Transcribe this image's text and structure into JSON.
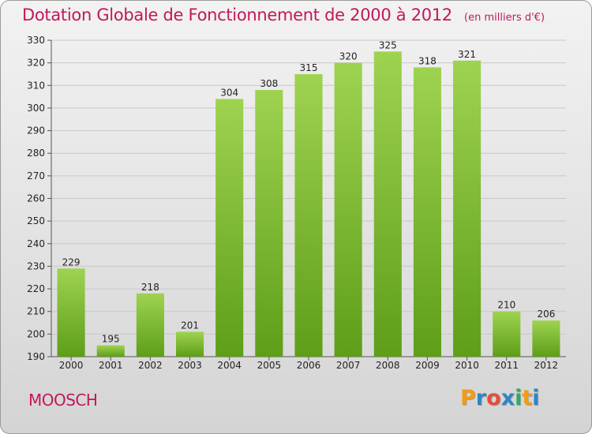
{
  "header": {
    "title": "Dotation Globale de Fonctionnement de 2000 à 2012",
    "unit": "(en milliers d'€)"
  },
  "commune": "MOOSCH",
  "brand": {
    "letters": [
      "P",
      "r",
      "o",
      "x",
      "i",
      "t",
      "i"
    ],
    "colors": [
      "#f39c12",
      "#2e86c1",
      "#e74c3c",
      "#2e86c1",
      "#27ae60",
      "#f39c12",
      "#2e86c1"
    ]
  },
  "colors": {
    "title": "#c2185b",
    "bar_top": "#9ed350",
    "bar_bottom": "#5e9e18"
  },
  "chart_data": {
    "type": "bar",
    "categories": [
      "2000",
      "2001",
      "2002",
      "2003",
      "2004",
      "2005",
      "2006",
      "2007",
      "2008",
      "2009",
      "2010",
      "2011",
      "2012"
    ],
    "values": [
      229,
      195,
      218,
      201,
      304,
      308,
      315,
      320,
      325,
      318,
      321,
      210,
      206
    ],
    "ylim": [
      190,
      330
    ],
    "yticks": [
      190,
      200,
      210,
      220,
      230,
      240,
      250,
      260,
      270,
      280,
      290,
      300,
      310,
      320,
      330
    ],
    "grid": true,
    "data_labels": true
  }
}
